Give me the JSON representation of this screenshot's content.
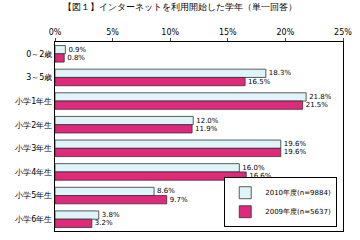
{
  "chart_data": {
    "type": "bar",
    "orientation": "horizontal",
    "title": "【図１】インターネットを利用開始した学年（単一回答）",
    "categories": [
      "0～2歳",
      "3～5歳",
      "小学1年生",
      "小学2年生",
      "小学3年生",
      "小学4年生",
      "小学5年生",
      "小学6年生"
    ],
    "series": [
      {
        "name": "2010年度(n=9884)",
        "color": "#dff4f8",
        "values": [
          0.9,
          18.3,
          21.8,
          12.0,
          19.6,
          16.0,
          8.6,
          3.8
        ],
        "value_labels": [
          "0.9%",
          "18.3%",
          "21.8%",
          "12.0%",
          "19.6%",
          "16.0%",
          "8.6%",
          "3.8%"
        ]
      },
      {
        "name": "2009年度(n=5637)",
        "color": "#e0297a",
        "values": [
          0.8,
          16.5,
          21.5,
          11.9,
          19.6,
          16.6,
          9.7,
          3.2
        ],
        "value_labels": [
          "0.8%",
          "16.5%",
          "21.5%",
          "11.9%",
          "19.6%",
          "16.6%",
          "9.7%",
          "3.2%"
        ]
      }
    ],
    "xlim": [
      0,
      25
    ],
    "xticks": [
      {
        "value": 0,
        "label": "0%"
      },
      {
        "value": 5,
        "label": "5%"
      },
      {
        "value": 10,
        "label": "10%"
      },
      {
        "value": 15,
        "label": "15%"
      },
      {
        "value": 20,
        "label": "20%"
      },
      {
        "value": 25,
        "label": "25%"
      }
    ],
    "grid": false,
    "legend": "lower right",
    "data_labels": true
  }
}
